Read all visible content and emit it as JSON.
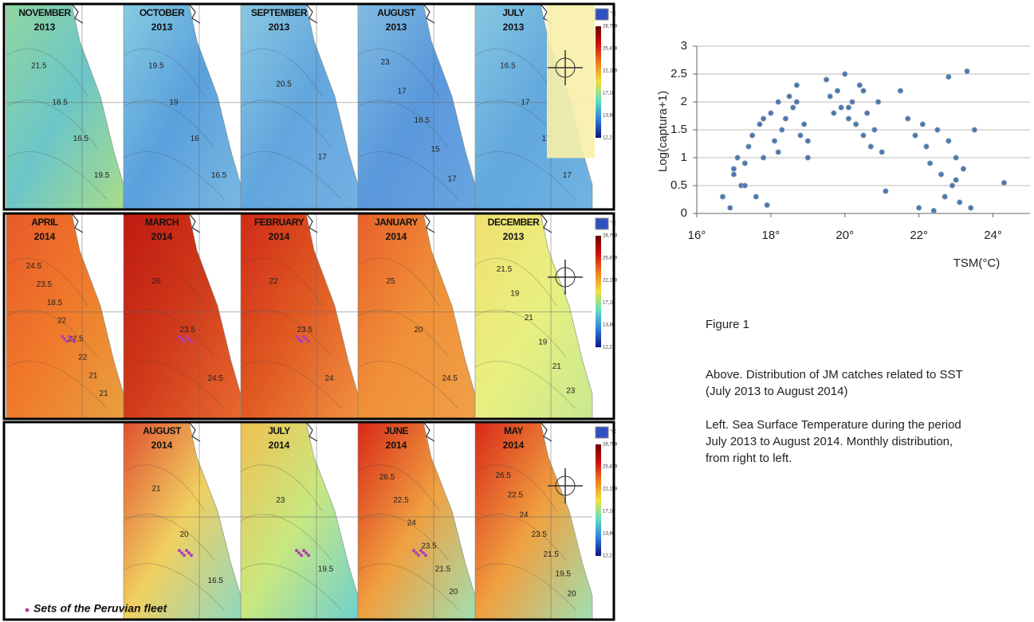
{
  "maps": {
    "unit": "°C",
    "colorbar_labels": [
      "28,799",
      "25,479",
      "22,159",
      "17,18",
      "13,86",
      "12,2"
    ],
    "legend": "Sets of the Peruvian fleet",
    "rows": [
      {
        "panels": [
          {
            "month": "NOVEMBER",
            "year": "2013",
            "contours": [
              "21.5",
              "18.5",
              "16.5",
              "19.5"
            ]
          },
          {
            "month": "OCTOBER",
            "year": "2013",
            "contours": [
              "19.5",
              "19",
              "16",
              "16.5"
            ]
          },
          {
            "month": "SEPTEMBER",
            "year": "2013",
            "contours": [
              "20.5",
              "17"
            ]
          },
          {
            "month": "AUGUST",
            "year": "2013",
            "contours": [
              "23",
              "17",
              "16.5",
              "15",
              "17"
            ]
          },
          {
            "month": "JULY",
            "year": "2013",
            "contours": [
              "16.5",
              "17",
              "17",
              "17"
            ]
          }
        ]
      },
      {
        "panels": [
          {
            "month": "APRIL",
            "year": "2014",
            "contours": [
              "24.5",
              "23.5",
              "18.5",
              "22",
              "22.5",
              "22",
              "21",
              "21"
            ]
          },
          {
            "month": "MARCH",
            "year": "2014",
            "contours": [
              "26",
              "23.5",
              "24.5"
            ]
          },
          {
            "month": "FEBRUARY",
            "year": "2014",
            "contours": [
              "22",
              "23.5",
              "24"
            ]
          },
          {
            "month": "JANUARY",
            "year": "2014",
            "contours": [
              "25",
              "20",
              "24.5"
            ]
          },
          {
            "month": "DECEMBER",
            "year": "2013",
            "contours": [
              "21.5",
              "19",
              "21",
              "19",
              "21",
              "23"
            ]
          }
        ]
      },
      {
        "panels": [
          {
            "month": "AUGUST",
            "year": "2014",
            "contours": [
              "21",
              "20",
              "16.5"
            ]
          },
          {
            "month": "JULY",
            "year": "2014",
            "contours": [
              "23",
              "19.5"
            ]
          },
          {
            "month": "JUNE",
            "year": "2014",
            "contours": [
              "26.5",
              "22.5",
              "24",
              "23.5",
              "21.5",
              "20"
            ]
          },
          {
            "month": "MAY",
            "year": "2014",
            "contours": [
              "26.5",
              "22.5",
              "24",
              "23.5",
              "21.5",
              "19.5",
              "20"
            ]
          }
        ]
      }
    ]
  },
  "chart_data": {
    "type": "scatter",
    "y_label": "Log(captura+1)",
    "x_label": "TSM(°C)",
    "xlim": [
      16,
      25
    ],
    "ylim": [
      0,
      3
    ],
    "xticks": [
      {
        "value": 16,
        "label": "16°"
      },
      {
        "value": 18,
        "label": "18°"
      },
      {
        "value": 20,
        "label": "20°"
      },
      {
        "value": 22,
        "label": "22°"
      },
      {
        "value": 24,
        "label": "24°"
      }
    ],
    "yticks": [
      0,
      0.5,
      1,
      1.5,
      2,
      2.5,
      3
    ],
    "grid": true,
    "color": "#4a78b0",
    "x": [
      16.7,
      16.9,
      17.0,
      17.1,
      17.2,
      17.3,
      17.4,
      17.5,
      17.6,
      17.7,
      17.8,
      17.9,
      18.0,
      18.1,
      18.2,
      18.3,
      18.4,
      18.5,
      18.6,
      18.7,
      18.8,
      18.9,
      19.0,
      19.5,
      19.6,
      19.7,
      19.8,
      19.9,
      20.0,
      20.1,
      20.2,
      20.3,
      20.4,
      20.5,
      20.6,
      20.7,
      20.8,
      20.9,
      21.0,
      21.1,
      21.5,
      21.7,
      21.9,
      22.0,
      22.1,
      22.2,
      22.3,
      22.4,
      22.5,
      22.6,
      22.7,
      22.8,
      22.9,
      23.0,
      23.1,
      23.2,
      23.3,
      23.4,
      23.5,
      24.3,
      17.0,
      17.3,
      18.2,
      18.7,
      20.1,
      20.5,
      22.8,
      23.0,
      17.8,
      19.0
    ],
    "values": [
      0.3,
      0.1,
      0.8,
      1.0,
      0.5,
      0.9,
      1.2,
      1.4,
      0.3,
      1.6,
      1.7,
      0.15,
      1.8,
      1.3,
      2.0,
      1.5,
      1.7,
      2.1,
      1.9,
      2.3,
      1.4,
      1.6,
      1.0,
      2.4,
      2.1,
      1.8,
      2.2,
      1.9,
      2.5,
      1.7,
      2.0,
      1.6,
      2.3,
      1.4,
      1.8,
      1.2,
      1.5,
      2.0,
      1.1,
      0.4,
      2.2,
      1.7,
      1.4,
      0.1,
      1.6,
      1.2,
      0.9,
      0.05,
      1.5,
      0.7,
      0.3,
      2.45,
      0.5,
      1.0,
      0.2,
      0.8,
      2.55,
      0.1,
      1.5,
      0.55,
      0.7,
      0.5,
      1.1,
      2.0,
      1.9,
      2.2,
      1.3,
      0.6,
      1.0,
      1.3
    ]
  },
  "caption": {
    "figure": "Figure 1",
    "above": "Above. Distribution of JM catches related to SST (July 2013 to August 2014)",
    "left": "Left. Sea Surface Temperature during the period July 2013 to August 2014. Monthly distribution, from right to left."
  }
}
